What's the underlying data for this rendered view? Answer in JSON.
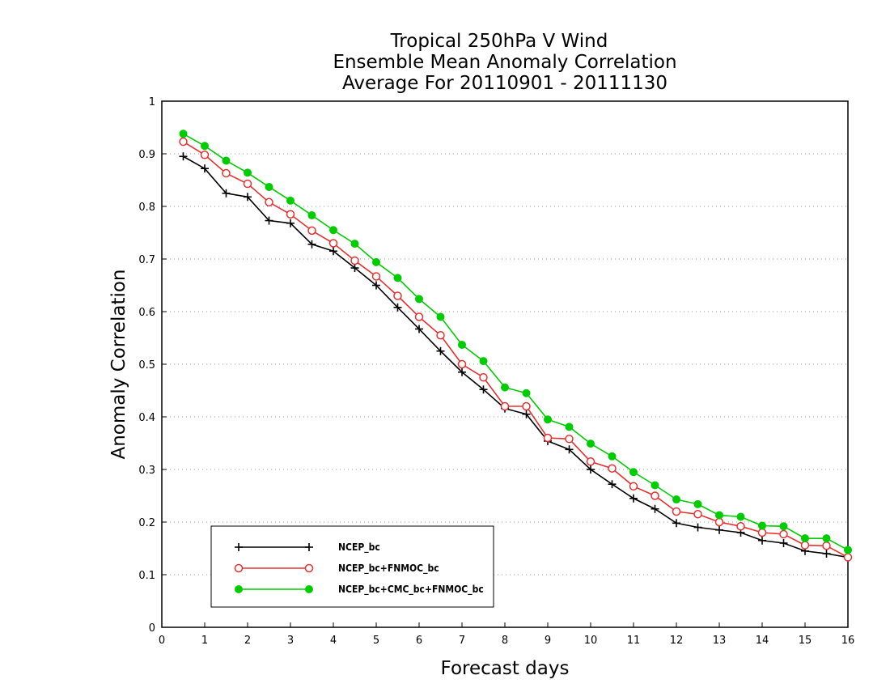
{
  "chart_data": {
    "type": "line",
    "title": [
      "Tropical 250hPa V Wind",
      "Ensemble Mean Anomaly Correlation",
      "Average For 20110901 - 20111130"
    ],
    "xlabel": "Forecast days",
    "ylabel": "Anomaly Correlation",
    "xlim": [
      0,
      16
    ],
    "ylim": [
      0,
      1
    ],
    "xticks": [
      0,
      1,
      2,
      3,
      4,
      5,
      6,
      7,
      8,
      9,
      10,
      11,
      12,
      13,
      14,
      15,
      16
    ],
    "yticks": [
      0,
      0.1,
      0.2,
      0.3,
      0.4,
      0.5,
      0.6,
      0.7,
      0.8,
      0.9,
      1
    ],
    "grid": "horizontal dotted",
    "legend_position": "bottom-left",
    "x": [
      0.5,
      1,
      1.5,
      2,
      2.5,
      3,
      3.5,
      4,
      4.5,
      5,
      5.5,
      6,
      6.5,
      7,
      7.5,
      8,
      8.5,
      9,
      9.5,
      10,
      10.5,
      11,
      11.5,
      12,
      12.5,
      13,
      13.5,
      14,
      14.5,
      15,
      15.5,
      16
    ],
    "series": [
      {
        "name": "NCEP_bc",
        "color": "#000000",
        "marker": "plus",
        "values": [
          0.895,
          0.872,
          0.825,
          0.818,
          0.773,
          0.768,
          0.728,
          0.715,
          0.683,
          0.65,
          0.608,
          0.567,
          0.525,
          0.485,
          0.452,
          0.416,
          0.405,
          0.354,
          0.338,
          0.3,
          0.272,
          0.245,
          0.225,
          0.198,
          0.19,
          0.185,
          0.18,
          0.165,
          0.16,
          0.145,
          0.14,
          0.133
        ]
      },
      {
        "name": "NCEP_bc+FNMOC_bc",
        "color": "#e83030",
        "marker": "open-circle",
        "values": [
          0.923,
          0.898,
          0.863,
          0.843,
          0.808,
          0.785,
          0.754,
          0.73,
          0.697,
          0.667,
          0.63,
          0.59,
          0.555,
          0.5,
          0.475,
          0.42,
          0.42,
          0.36,
          0.358,
          0.315,
          0.302,
          0.268,
          0.25,
          0.22,
          0.215,
          0.2,
          0.192,
          0.18,
          0.177,
          0.156,
          0.155,
          0.133
        ]
      },
      {
        "name": "NCEP_bc+CMC_bc+FNMOC_bc",
        "color": "#00cc00",
        "marker": "filled-circle",
        "values": [
          0.938,
          0.915,
          0.887,
          0.864,
          0.837,
          0.811,
          0.783,
          0.755,
          0.729,
          0.694,
          0.664,
          0.624,
          0.59,
          0.537,
          0.506,
          0.456,
          0.445,
          0.395,
          0.381,
          0.349,
          0.325,
          0.295,
          0.27,
          0.243,
          0.234,
          0.213,
          0.21,
          0.193,
          0.192,
          0.169,
          0.169,
          0.147
        ]
      }
    ]
  }
}
